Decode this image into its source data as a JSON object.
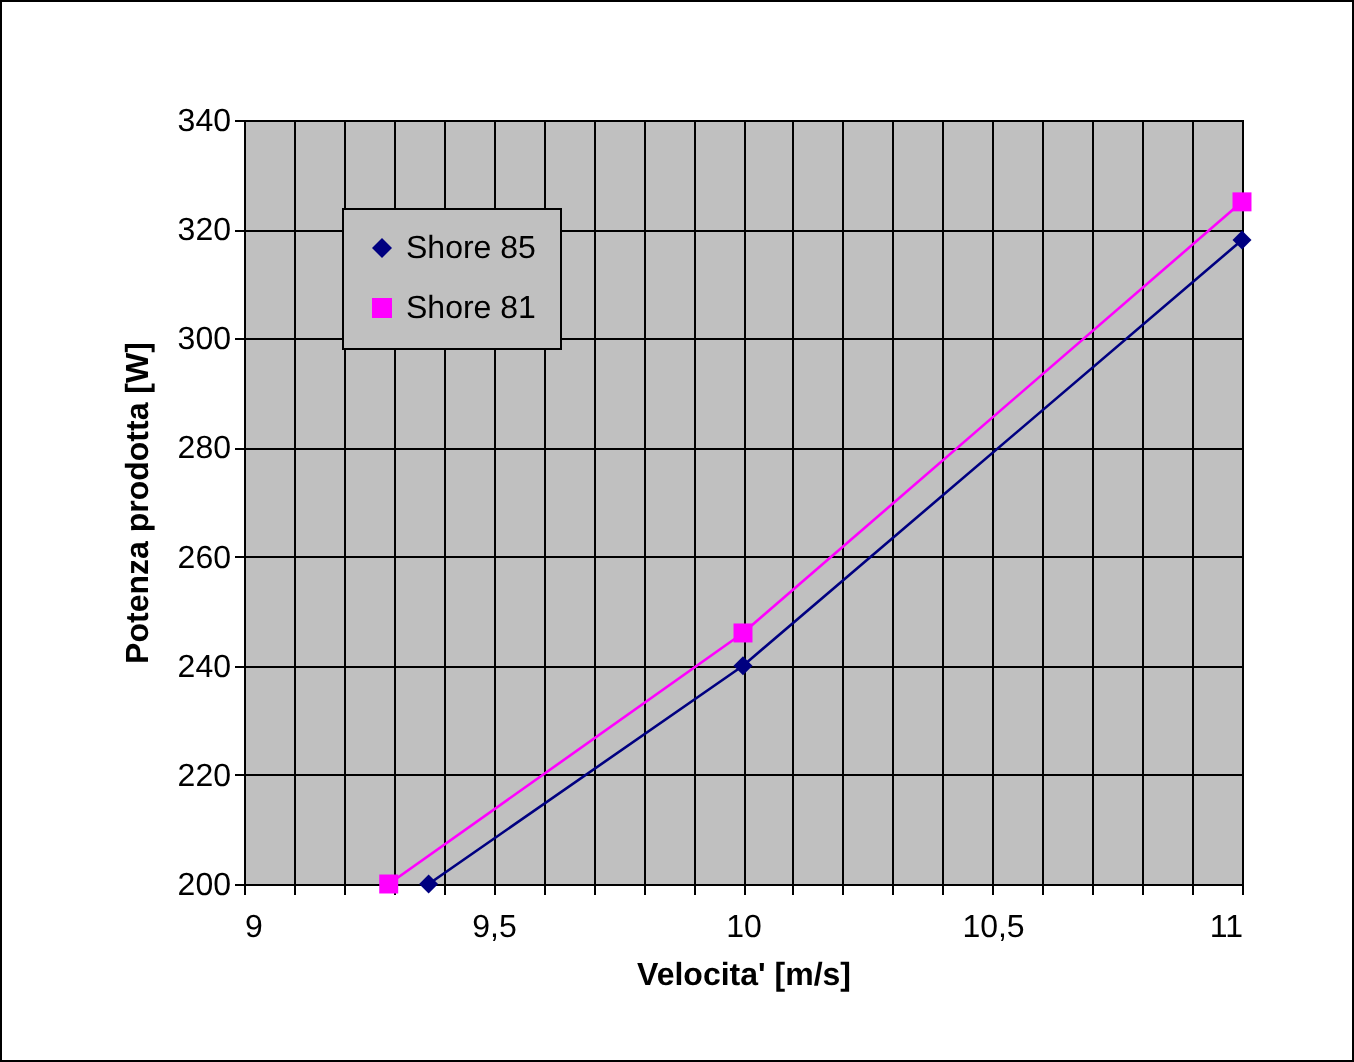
{
  "chart_data": {
    "type": "line",
    "xlabel": "Velocita' [m/s]",
    "ylabel": "Potenza prodotta [W]",
    "xlim": [
      9,
      11
    ],
    "ylim": [
      200,
      340
    ],
    "xticks": [
      9,
      {
        "value": 9.1,
        "label": null
      },
      {
        "value": 9.2,
        "label": null
      },
      {
        "value": 9.3,
        "label": null
      },
      {
        "value": 9.4,
        "label": null
      },
      {
        "value": 9.5,
        "label": "9,5"
      },
      {
        "value": 9.6,
        "label": null
      },
      {
        "value": 9.7,
        "label": null
      },
      {
        "value": 9.8,
        "label": null
      },
      {
        "value": 9.9,
        "label": null
      },
      10,
      {
        "value": 10.1,
        "label": null
      },
      {
        "value": 10.2,
        "label": null
      },
      {
        "value": 10.3,
        "label": null
      },
      {
        "value": 10.4,
        "label": null
      },
      {
        "value": 10.5,
        "label": "10,5"
      },
      {
        "value": 10.6,
        "label": null
      },
      {
        "value": 10.7,
        "label": null
      },
      {
        "value": 10.8,
        "label": null
      },
      {
        "value": 10.9,
        "label": null
      },
      11
    ],
    "yticks": [
      200,
      220,
      240,
      260,
      280,
      300,
      320,
      340
    ],
    "grid": true,
    "legend": "top left",
    "series": [
      {
        "name": "Shore 85",
        "color": "#000080",
        "marker": "diamond",
        "x": [
          9.37,
          10,
          11
        ],
        "values": [
          200,
          240,
          318
        ]
      },
      {
        "name": "Shore 81",
        "color": "#ff00ff",
        "marker": "square",
        "x": [
          9.29,
          10,
          11
        ],
        "values": [
          200,
          246,
          325
        ]
      }
    ]
  }
}
